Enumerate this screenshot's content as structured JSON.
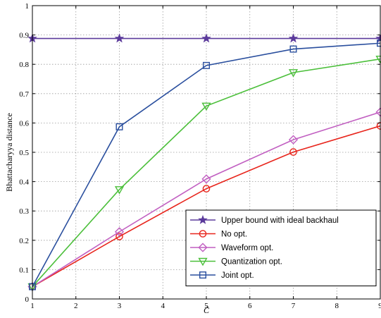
{
  "chart_data": {
    "type": "line",
    "x": [
      1,
      3,
      5,
      7,
      9
    ],
    "xlabel": "C̄",
    "ylabel": "Bhattacharyya distance",
    "xlim": [
      1,
      9
    ],
    "ylim": [
      0,
      1
    ],
    "xticks": [
      "1",
      "2",
      "3",
      "4",
      "5",
      "6",
      "7",
      "8",
      "9"
    ],
    "yticks": [
      "0",
      "0.1",
      "0.2",
      "0.3",
      "0.4",
      "0.5",
      "0.6",
      "0.7",
      "0.8",
      "0.9",
      "1"
    ],
    "grid": true,
    "legend_position": "bottom-right",
    "series": [
      {
        "name": "Upper bound with ideal backhaul",
        "values": [
          0.888,
          0.888,
          0.888,
          0.888,
          0.888
        ],
        "color": "#5b3a9b",
        "marker": "star"
      },
      {
        "name": "No opt.",
        "values": [
          0.042,
          0.213,
          0.376,
          0.501,
          0.59
        ],
        "color": "#e8251c",
        "marker": "circle"
      },
      {
        "name": "Waveform opt.",
        "values": [
          0.042,
          0.229,
          0.409,
          0.543,
          0.637
        ],
        "color": "#c15fc1",
        "marker": "diamond"
      },
      {
        "name": "Quantization opt.",
        "values": [
          0.042,
          0.373,
          0.658,
          0.772,
          0.818
        ],
        "color": "#4bbf3a",
        "marker": "triangle-down"
      },
      {
        "name": "Joint opt.",
        "values": [
          0.042,
          0.587,
          0.796,
          0.852,
          0.872
        ],
        "color": "#2a4f9e",
        "marker": "square"
      }
    ]
  }
}
